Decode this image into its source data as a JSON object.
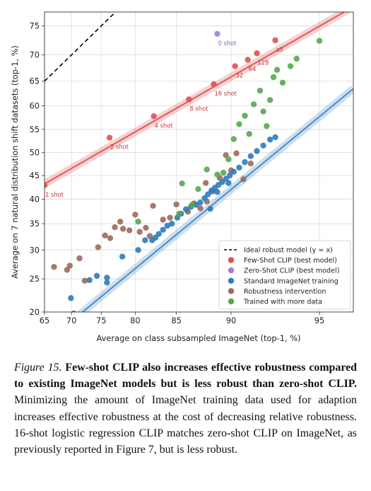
{
  "chart_data": {
    "type": "scatter",
    "xlabel": "Average on class subsampled ImageNet (top-1, %)",
    "ylabel": "Average on 7 natural distribution shift datasets (top-1, %)",
    "xscale": "logit",
    "yscale": "logit",
    "xlim": [
      65,
      96.2
    ],
    "ylim": [
      20,
      77.2
    ],
    "xticks": [
      65,
      70,
      75,
      80,
      85,
      90,
      95
    ],
    "yticks": [
      20,
      25,
      30,
      35,
      40,
      45,
      50,
      55,
      60,
      65,
      70,
      75
    ],
    "grid": true,
    "legend_position": "lower-right",
    "ideal_line": {
      "name": "Ideal robust model (y = x)",
      "color": "#000000",
      "style": "dashed"
    },
    "fits": [
      {
        "series": "Few-Shot CLIP (best model)",
        "color": "#e05a5a",
        "points": [
          [
            65,
            43.2
          ],
          [
            96.2,
            78.0
          ]
        ]
      },
      {
        "series": "Standard ImageNet training",
        "color": "#4a8cc7",
        "points": [
          [
            66,
            16.5
          ],
          [
            96.2,
            63.5
          ]
        ]
      }
    ],
    "series": [
      {
        "name": "Few-Shot CLIP (best model)",
        "color": "#e05252",
        "points": [
          {
            "x": 65.0,
            "y": 42.9,
            "label": "1 shot"
          },
          {
            "x": 76.3,
            "y": 53.2,
            "label": "2 shot"
          },
          {
            "x": 82.4,
            "y": 57.8,
            "label": "4 shot"
          },
          {
            "x": 86.3,
            "y": 61.3,
            "label": "8 shot"
          },
          {
            "x": 88.6,
            "y": 64.4,
            "label": "16 shot"
          },
          {
            "x": 90.3,
            "y": 67.9,
            "label": "32"
          },
          {
            "x": 91.2,
            "y": 69.1,
            "label": "64"
          },
          {
            "x": 91.8,
            "y": 70.3,
            "label": "128"
          },
          {
            "x": 92.9,
            "y": 72.6,
            "label": "all"
          }
        ]
      },
      {
        "name": "Zero-Shot CLIP (best model)",
        "color": "#a57fd0",
        "points": [
          {
            "x": 88.9,
            "y": 73.7,
            "label": "0 shot"
          }
        ]
      },
      {
        "name": "Standard ImageNet training",
        "color": "#2e7bbb",
        "points": [
          {
            "x": 69.9,
            "y": 22.0
          },
          {
            "x": 70.4,
            "y": 19.8
          },
          {
            "x": 73.1,
            "y": 24.8
          },
          {
            "x": 74.3,
            "y": 25.5
          },
          {
            "x": 75.9,
            "y": 25.2
          },
          {
            "x": 75.9,
            "y": 24.4
          },
          {
            "x": 78.2,
            "y": 28.8
          },
          {
            "x": 80.4,
            "y": 30.0
          },
          {
            "x": 81.3,
            "y": 31.8
          },
          {
            "x": 82.2,
            "y": 31.8
          },
          {
            "x": 82.6,
            "y": 32.3
          },
          {
            "x": 83.0,
            "y": 33.0
          },
          {
            "x": 83.5,
            "y": 33.8
          },
          {
            "x": 84.0,
            "y": 34.6
          },
          {
            "x": 84.5,
            "y": 35.0
          },
          {
            "x": 85.1,
            "y": 36.2
          },
          {
            "x": 85.5,
            "y": 37.0
          },
          {
            "x": 86.0,
            "y": 37.9
          },
          {
            "x": 86.5,
            "y": 38.4
          },
          {
            "x": 87.0,
            "y": 38.8
          },
          {
            "x": 87.4,
            "y": 39.3
          },
          {
            "x": 87.8,
            "y": 40.2
          },
          {
            "x": 88.1,
            "y": 41.0
          },
          {
            "x": 88.4,
            "y": 41.8
          },
          {
            "x": 88.7,
            "y": 42.4
          },
          {
            "x": 89.0,
            "y": 43.0
          },
          {
            "x": 89.3,
            "y": 43.6
          },
          {
            "x": 89.6,
            "y": 44.3
          },
          {
            "x": 89.9,
            "y": 45.0
          },
          {
            "x": 90.2,
            "y": 45.8
          },
          {
            "x": 90.6,
            "y": 46.7
          },
          {
            "x": 91.0,
            "y": 47.9
          },
          {
            "x": 91.4,
            "y": 49.2
          },
          {
            "x": 91.8,
            "y": 50.3
          },
          {
            "x": 92.2,
            "y": 51.5
          },
          {
            "x": 92.6,
            "y": 52.8
          },
          {
            "x": 92.9,
            "y": 53.3
          },
          {
            "x": 88.3,
            "y": 38.0
          },
          {
            "x": 88.9,
            "y": 41.5
          },
          {
            "x": 89.8,
            "y": 43.4
          }
        ]
      },
      {
        "name": "Robustness intervention",
        "color": "#9b6a5a",
        "points": [
          {
            "x": 66.8,
            "y": 27.0
          },
          {
            "x": 69.2,
            "y": 26.5
          },
          {
            "x": 69.7,
            "y": 27.2
          },
          {
            "x": 71.4,
            "y": 28.5
          },
          {
            "x": 72.3,
            "y": 24.7
          },
          {
            "x": 74.5,
            "y": 30.5
          },
          {
            "x": 75.6,
            "y": 32.7
          },
          {
            "x": 76.4,
            "y": 32.2
          },
          {
            "x": 77.1,
            "y": 34.3
          },
          {
            "x": 77.9,
            "y": 35.4
          },
          {
            "x": 78.3,
            "y": 34.0
          },
          {
            "x": 79.2,
            "y": 33.7
          },
          {
            "x": 80.0,
            "y": 36.8
          },
          {
            "x": 80.6,
            "y": 33.4
          },
          {
            "x": 81.4,
            "y": 34.2
          },
          {
            "x": 81.9,
            "y": 32.6
          },
          {
            "x": 82.3,
            "y": 38.6
          },
          {
            "x": 83.5,
            "y": 35.8
          },
          {
            "x": 84.3,
            "y": 36.2
          },
          {
            "x": 85.0,
            "y": 38.9
          },
          {
            "x": 86.2,
            "y": 37.4
          },
          {
            "x": 86.8,
            "y": 39.1
          },
          {
            "x": 87.4,
            "y": 38.1
          },
          {
            "x": 87.9,
            "y": 43.4
          },
          {
            "x": 88.5,
            "y": 41.6
          },
          {
            "x": 89.1,
            "y": 44.5
          },
          {
            "x": 89.6,
            "y": 49.4
          },
          {
            "x": 90.0,
            "y": 46.1
          },
          {
            "x": 90.4,
            "y": 49.8
          },
          {
            "x": 90.9,
            "y": 44.2
          },
          {
            "x": 91.4,
            "y": 47.6
          },
          {
            "x": 88.0,
            "y": 39.5
          }
        ]
      },
      {
        "name": "Trained with more data",
        "color": "#54a94c",
        "points": [
          {
            "x": 80.4,
            "y": 35.4
          },
          {
            "x": 85.3,
            "y": 37.0
          },
          {
            "x": 85.6,
            "y": 43.3
          },
          {
            "x": 86.6,
            "y": 38.8
          },
          {
            "x": 87.2,
            "y": 42.1
          },
          {
            "x": 88.0,
            "y": 46.3
          },
          {
            "x": 88.9,
            "y": 45.2
          },
          {
            "x": 89.4,
            "y": 45.6
          },
          {
            "x": 89.8,
            "y": 48.5
          },
          {
            "x": 90.2,
            "y": 52.9
          },
          {
            "x": 90.6,
            "y": 56.1
          },
          {
            "x": 91.0,
            "y": 57.9
          },
          {
            "x": 91.3,
            "y": 54.0
          },
          {
            "x": 91.6,
            "y": 60.3
          },
          {
            "x": 92.0,
            "y": 63.1
          },
          {
            "x": 92.2,
            "y": 58.8
          },
          {
            "x": 92.6,
            "y": 61.2
          },
          {
            "x": 92.8,
            "y": 65.8
          },
          {
            "x": 93.0,
            "y": 67.2
          },
          {
            "x": 93.3,
            "y": 64.7
          },
          {
            "x": 93.7,
            "y": 67.9
          },
          {
            "x": 94.0,
            "y": 69.3
          },
          {
            "x": 95.0,
            "y": 72.5
          },
          {
            "x": 92.4,
            "y": 55.7
          }
        ]
      }
    ]
  },
  "caption": {
    "figure_label": "Figure 15.",
    "bold_text": "Few-shot CLIP also increases effective robustness compared to existing ImageNet models but is less robust than zero-shot CLIP.",
    "body_text": "Minimizing the amount of ImageNet training data used for adaption increases effective robustness at the cost of decreasing relative robustness. 16-shot logistic regression CLIP matches zero-shot CLIP on ImageNet, as previously reported in Figure 7, but is less robust."
  }
}
